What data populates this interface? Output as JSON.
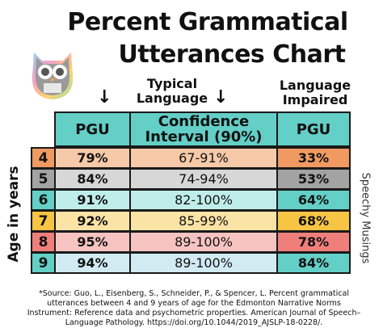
{
  "title_line1": "Percent Grammatical",
  "title_line2": "Utterances Chart",
  "header_typical": "Typical Language",
  "header_impaired": "Language Impaired",
  "columns": {
    "pgu": "PGU",
    "ci": "Confidence Interval (90%)",
    "pgu_impaired": "PGU"
  },
  "y_axis_label": "Age in years",
  "side_credit": "Speechy Musings",
  "rows": [
    {
      "age": "4",
      "pgu": "79%",
      "ci": "67-91%",
      "impaired": "33%"
    },
    {
      "age": "5",
      "pgu": "84%",
      "ci": "74-94%",
      "impaired": "53%"
    },
    {
      "age": "6",
      "pgu": "91%",
      "ci": "82-100%",
      "impaired": "64%"
    },
    {
      "age": "7",
      "pgu": "92%",
      "ci": "85-99%",
      "impaired": "68%"
    },
    {
      "age": "8",
      "pgu": "95%",
      "ci": "89-100%",
      "impaired": "78%"
    },
    {
      "age": "9",
      "pgu": "94%",
      "ci": "89-100%",
      "impaired": "84%"
    }
  ],
  "colors": {
    "header": "#63cfc7",
    "row_bg": [
      "#f6c9a8",
      "#d7d7d7",
      "#bfeeea",
      "#fbe3a6",
      "#f6c3c1",
      "#d2ebf2"
    ],
    "age_bg": [
      "#f09a62",
      "#a3a3a3",
      "#63cfc7",
      "#f8c444",
      "#ef7f7b",
      "#63cfc7"
    ],
    "impaired_bg": [
      "#f09a62",
      "#a3a3a3",
      "#63cfc7",
      "#f8c444",
      "#ef7f7b",
      "#63cfc7"
    ]
  },
  "source": "*Source: Guo, L., Eisenberg, S., Schneider, P., & Spencer, L. Percent grammatical utterances between 4 and 9 years of age for the Edmonton Narrative Norms Instrument: Reference data and psychometric properties. American Journal of Speech–Language Pathology. https://doi.org/10.1044/2019_AJSLP-18-0228/.",
  "logo_icon": "owl-icon"
}
